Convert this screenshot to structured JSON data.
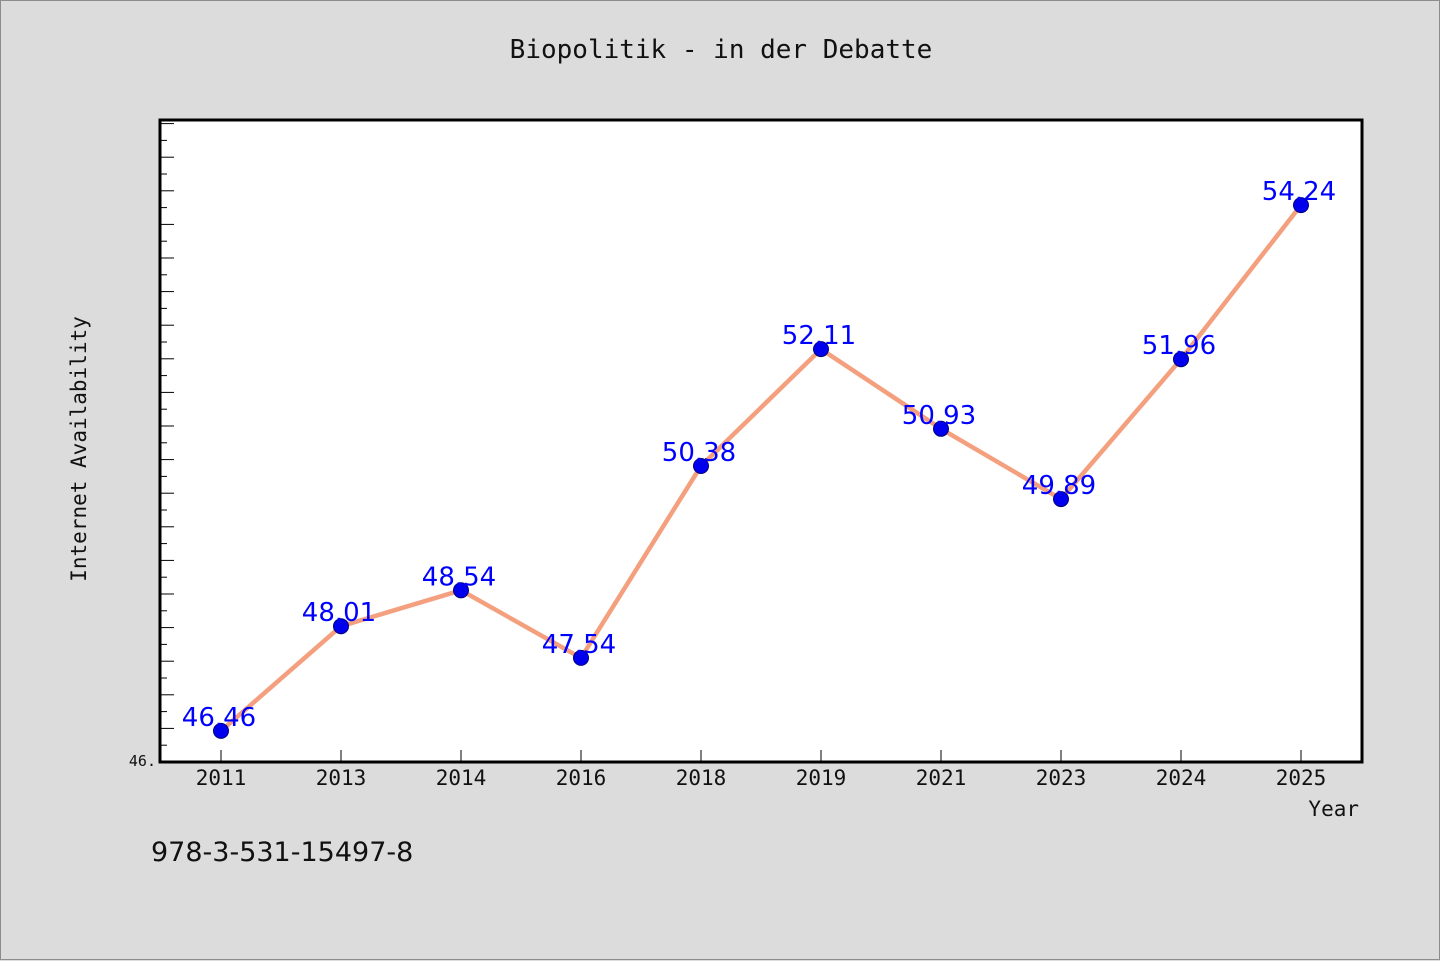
{
  "chart_data": {
    "type": "line",
    "title": "Biopolitik - in der Debatte",
    "xlabel": "Year",
    "ylabel": "Internet Availability",
    "categories": [
      "2011",
      "2013",
      "2014",
      "2016",
      "2018",
      "2019",
      "2021",
      "2023",
      "2024",
      "2025"
    ],
    "series": [
      {
        "values": [
          46.46,
          48.01,
          48.54,
          47.54,
          50.38,
          52.11,
          50.93,
          49.89,
          51.96,
          54.24
        ],
        "labels": [
          "46.46",
          "48.01",
          "48.54",
          "47.54",
          "50.38",
          "52.11",
          "50.93",
          "49.89",
          "51.96",
          "54.24"
        ]
      }
    ],
    "y_tick_label": "46.",
    "ylim": [
      46.0,
      55.5
    ],
    "grid": false,
    "legend": "none",
    "colors": {
      "line": "#f4a07f",
      "marker": "#0000ee",
      "data_label": "#0000ff",
      "plot_bg": "#ffffff",
      "page_bg": "#dcdcdc"
    }
  },
  "footnote": "978-3-531-15497-8"
}
